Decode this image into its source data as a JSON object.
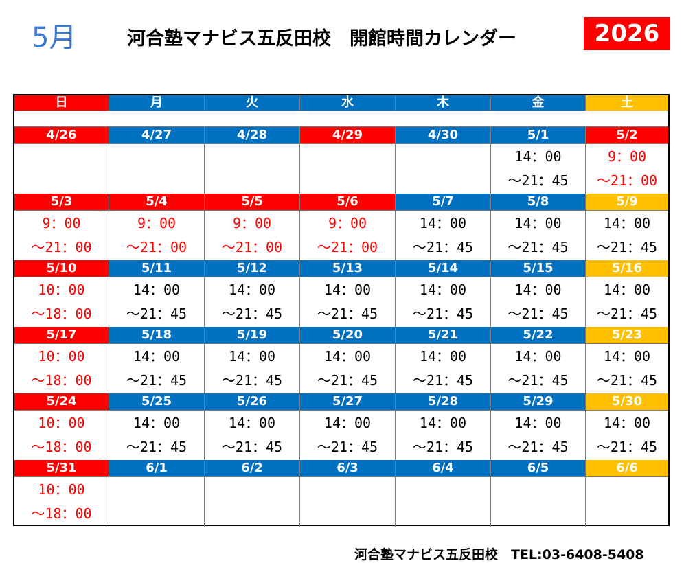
{
  "header": {
    "month": "5月",
    "title": "河合塾マナビス五反田校　開館時間カレンダー",
    "year": "2026"
  },
  "days": [
    "日",
    "月",
    "火",
    "水",
    "木",
    "金",
    "土"
  ],
  "weeks": [
    {
      "dates": [
        "4/26",
        "4/27",
        "4/28",
        "4/29",
        "4/30",
        "5/1",
        "5/2"
      ],
      "colors": [
        "red",
        "blue",
        "blue",
        "red",
        "blue",
        "blue",
        "red"
      ],
      "open": [
        "",
        "",
        "",
        "",
        "",
        "14：00",
        "9：00"
      ],
      "close": [
        "",
        "",
        "",
        "",
        "",
        "～21：45",
        "～21：00"
      ],
      "tcolor": [
        "",
        "",
        "",
        "",
        "",
        "bk",
        "rt"
      ]
    },
    {
      "dates": [
        "5/3",
        "5/4",
        "5/5",
        "5/6",
        "5/7",
        "5/8",
        "5/9"
      ],
      "colors": [
        "red",
        "red",
        "red",
        "red",
        "blue",
        "blue",
        "orange"
      ],
      "open": [
        "9：00",
        "9：00",
        "9：00",
        "9：00",
        "14：00",
        "14：00",
        "14：00"
      ],
      "close": [
        "～21：00",
        "～21：00",
        "～21：00",
        "～21：00",
        "～21：45",
        "～21：45",
        "～21：45"
      ],
      "tcolor": [
        "rt",
        "rt",
        "rt",
        "rt",
        "bk",
        "bk",
        "bk"
      ]
    },
    {
      "dates": [
        "5/10",
        "5/11",
        "5/12",
        "5/13",
        "5/14",
        "5/15",
        "5/16"
      ],
      "colors": [
        "red",
        "blue",
        "blue",
        "blue",
        "blue",
        "blue",
        "orange"
      ],
      "open": [
        "10：00",
        "14：00",
        "14：00",
        "14：00",
        "14：00",
        "14：00",
        "14：00"
      ],
      "close": [
        "～18：00",
        "～21：45",
        "～21：45",
        "～21：45",
        "～21：45",
        "～21：45",
        "～21：45"
      ],
      "tcolor": [
        "rt",
        "bk",
        "bk",
        "bk",
        "bk",
        "bk",
        "bk"
      ]
    },
    {
      "dates": [
        "5/17",
        "5/18",
        "5/19",
        "5/20",
        "5/21",
        "5/22",
        "5/23"
      ],
      "colors": [
        "red",
        "blue",
        "blue",
        "blue",
        "blue",
        "blue",
        "orange"
      ],
      "open": [
        "10：00",
        "14：00",
        "14：00",
        "14：00",
        "14：00",
        "14：00",
        "14：00"
      ],
      "close": [
        "～18：00",
        "～21：45",
        "～21：45",
        "～21：45",
        "～21：45",
        "～21：45",
        "～21：45"
      ],
      "tcolor": [
        "rt",
        "bk",
        "bk",
        "bk",
        "bk",
        "bk",
        "bk"
      ]
    },
    {
      "dates": [
        "5/24",
        "5/25",
        "5/26",
        "5/27",
        "5/28",
        "5/29",
        "5/30"
      ],
      "colors": [
        "red",
        "blue",
        "blue",
        "blue",
        "blue",
        "blue",
        "orange"
      ],
      "open": [
        "10：00",
        "14：00",
        "14：00",
        "14：00",
        "14：00",
        "14：00",
        "14：00"
      ],
      "close": [
        "～18：00",
        "～21：45",
        "～21：45",
        "～21：45",
        "～21：45",
        "～21：45",
        "～21：45"
      ],
      "tcolor": [
        "rt",
        "bk",
        "bk",
        "bk",
        "bk",
        "bk",
        "bk"
      ]
    },
    {
      "dates": [
        "5/31",
        "6/1",
        "6/2",
        "6/3",
        "6/4",
        "6/5",
        "6/6"
      ],
      "colors": [
        "red",
        "blue",
        "blue",
        "blue",
        "blue",
        "blue",
        "orange"
      ],
      "open": [
        "10：00",
        "",
        "",
        "",
        "",
        "",
        ""
      ],
      "close": [
        "～18：00",
        "",
        "",
        "",
        "",
        "",
        ""
      ],
      "tcolor": [
        "rt",
        "",
        "",
        "",
        "",
        "",
        ""
      ]
    }
  ],
  "footer": "河合塾マナビス五反田校　TEL:03-6408-5408"
}
